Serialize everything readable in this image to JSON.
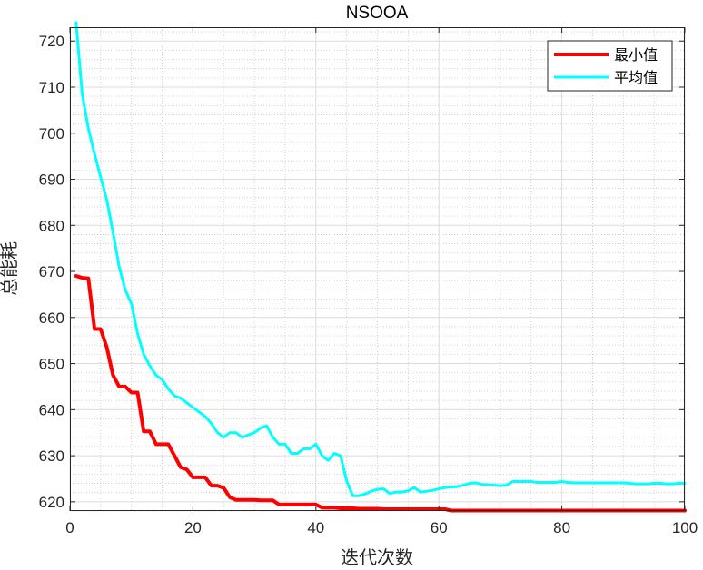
{
  "chart_data": {
    "type": "line",
    "title": "NSOOA",
    "xlabel": "迭代次数",
    "ylabel": "总能耗",
    "xlim": [
      0,
      100
    ],
    "ylim": [
      618,
      723
    ],
    "x_ticks": [
      0,
      20,
      40,
      60,
      80,
      100
    ],
    "y_ticks": [
      620,
      630,
      640,
      650,
      660,
      670,
      680,
      690,
      700,
      710,
      720
    ],
    "grid": true,
    "minor_grid": true,
    "legend_position": "top-right",
    "series": [
      {
        "name": "最小值",
        "color": "#ff0000",
        "x": [
          1,
          2,
          3,
          4,
          5,
          6,
          7,
          8,
          9,
          10,
          11,
          12,
          13,
          14,
          15,
          16,
          17,
          18,
          19,
          20,
          21,
          22,
          23,
          24,
          25,
          26,
          27,
          28,
          29,
          30,
          31,
          32,
          33,
          34,
          35,
          36,
          37,
          38,
          39,
          40,
          41,
          42,
          43,
          44,
          45,
          46,
          47,
          48,
          49,
          50,
          51,
          52,
          53,
          54,
          55,
          56,
          57,
          58,
          59,
          60,
          61,
          62,
          63,
          64,
          65,
          66,
          67,
          68,
          69,
          70,
          71,
          72,
          73,
          74,
          75,
          76,
          77,
          78,
          79,
          80,
          81,
          82,
          83,
          84,
          85,
          86,
          87,
          88,
          89,
          90,
          91,
          92,
          93,
          94,
          95,
          96,
          97,
          98,
          99,
          100
        ],
        "y": [
          669,
          668.6,
          668.5,
          657.5,
          657.5,
          653.5,
          647.5,
          645,
          645,
          643.7,
          643.7,
          635.3,
          635.3,
          632.5,
          632.5,
          632.5,
          630,
          627.5,
          627,
          625.3,
          625.3,
          625.3,
          623.5,
          623.5,
          623,
          621,
          620.4,
          620.4,
          620.4,
          620.4,
          620.3,
          620.3,
          620.3,
          619.4,
          619.4,
          619.4,
          619.4,
          619.4,
          619.4,
          619.4,
          618.7,
          618.7,
          618.7,
          618.6,
          618.6,
          618.6,
          618.5,
          618.5,
          618.5,
          618.5,
          618.4,
          618.4,
          618.4,
          618.4,
          618.4,
          618.4,
          618.4,
          618.4,
          618.4,
          618.4,
          618.4,
          618.1,
          618.1,
          618.1,
          618.1,
          618.1,
          618.1,
          618.1,
          618.1,
          618.1,
          618.1,
          618.1,
          618.1,
          618.1,
          618.1,
          618.1,
          618.1,
          618.1,
          618.1,
          618.1,
          618.1,
          618.1,
          618.1,
          618.1,
          618.1,
          618.1,
          618.1,
          618.1,
          618.1,
          618.1,
          618.1,
          618.1,
          618.1,
          618.1,
          618.1,
          618.1,
          618.1,
          618.1,
          618.1,
          618.1
        ]
      },
      {
        "name": "平均值",
        "color": "#00ffff",
        "x": [
          1,
          2,
          3,
          4,
          5,
          6,
          7,
          8,
          9,
          10,
          11,
          12,
          13,
          14,
          15,
          16,
          17,
          18,
          19,
          20,
          21,
          22,
          23,
          24,
          25,
          26,
          27,
          28,
          29,
          30,
          31,
          32,
          33,
          34,
          35,
          36,
          37,
          38,
          39,
          40,
          41,
          42,
          43,
          44,
          45,
          46,
          47,
          48,
          49,
          50,
          51,
          52,
          53,
          54,
          55,
          56,
          57,
          58,
          59,
          60,
          61,
          62,
          63,
          64,
          65,
          66,
          67,
          68,
          69,
          70,
          71,
          72,
          73,
          74,
          75,
          76,
          77,
          78,
          79,
          80,
          81,
          82,
          83,
          84,
          85,
          86,
          87,
          88,
          89,
          90,
          91,
          92,
          93,
          94,
          95,
          96,
          97,
          98,
          99,
          100
        ],
        "y": [
          724,
          708.5,
          701,
          695.5,
          690.5,
          685.5,
          678.5,
          671,
          666,
          663,
          656.5,
          652,
          649.5,
          647.5,
          646.5,
          644.5,
          643,
          642.5,
          641.5,
          640.5,
          639.5,
          638.5,
          637,
          635,
          634,
          635,
          635,
          634,
          634.5,
          635,
          636,
          636.5,
          634,
          632.5,
          632.5,
          630.5,
          630.5,
          631.5,
          631.5,
          632.5,
          630,
          629,
          630.5,
          630,
          624.5,
          621.3,
          621.3,
          621.7,
          622.3,
          622.7,
          622.8,
          621.8,
          622.1,
          622.1,
          622.4,
          623.1,
          622.1,
          622.3,
          622.5,
          622.8,
          623.1,
          623.2,
          623.3,
          623.6,
          624,
          624.1,
          623.8,
          623.7,
          623.6,
          623.5,
          623.6,
          624.4,
          624.4,
          624.4,
          624.4,
          624.2,
          624.2,
          624.2,
          624.2,
          624.4,
          624.2,
          624.1,
          624.1,
          624.1,
          624.1,
          624.1,
          624.1,
          624.1,
          624.1,
          624.1,
          624,
          623.9,
          623.9,
          623.9,
          624,
          624,
          623.9,
          623.9,
          624,
          624
        ]
      }
    ]
  }
}
